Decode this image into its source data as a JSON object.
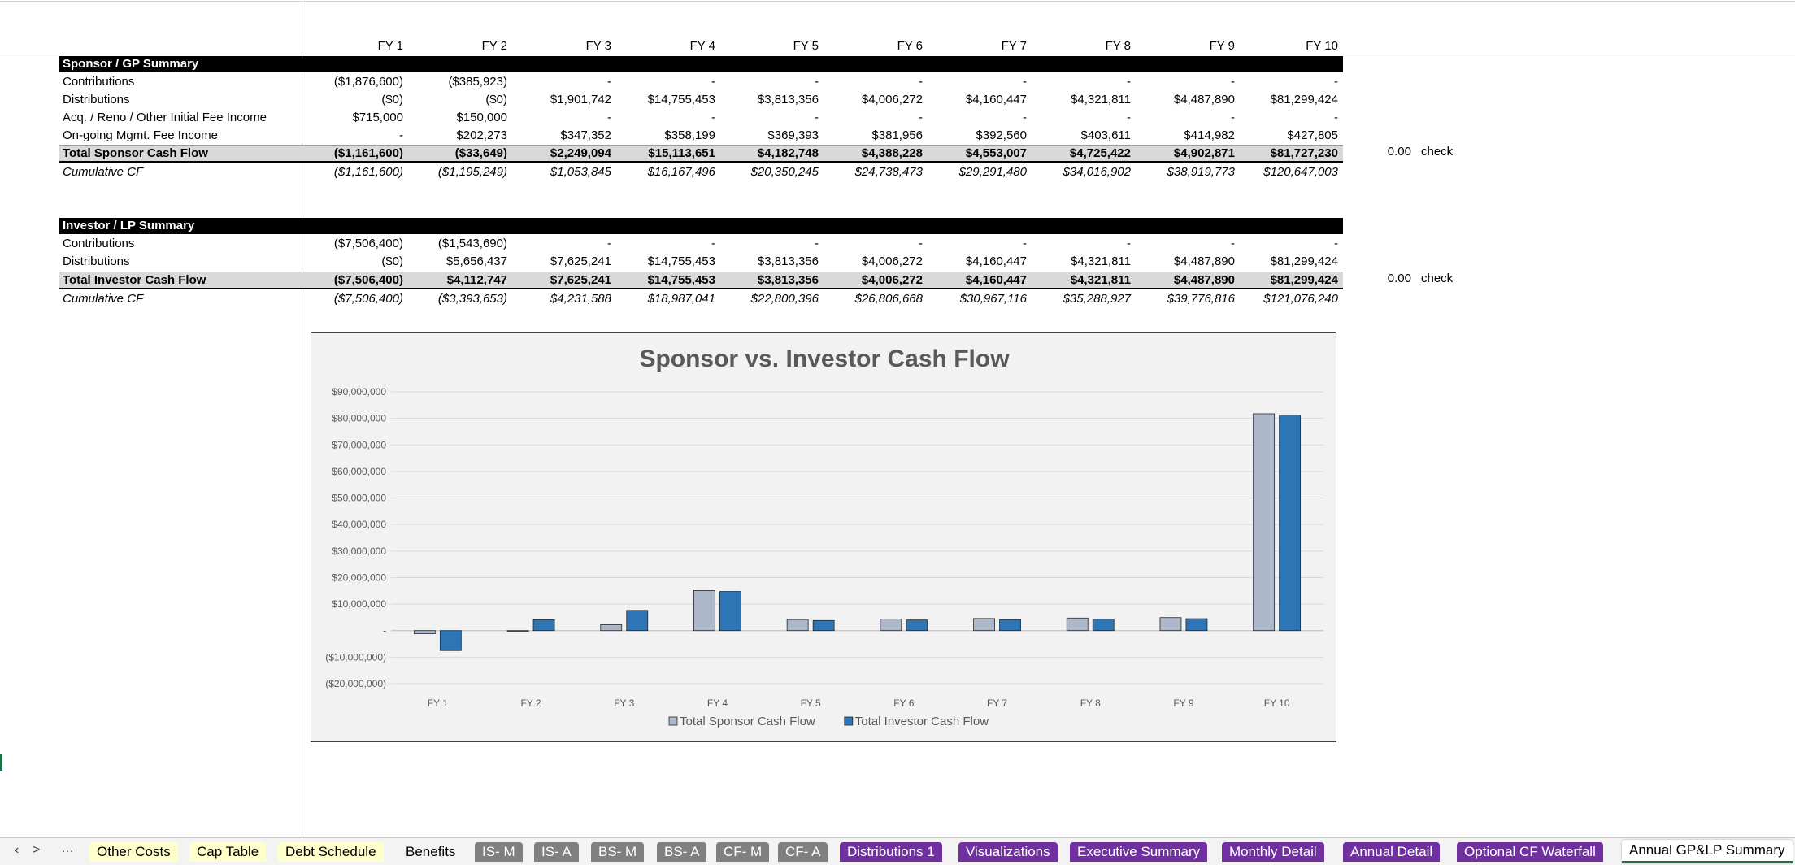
{
  "fy_headers": [
    "FY 1",
    "FY 2",
    "FY 3",
    "FY 4",
    "FY 5",
    "FY 6",
    "FY 7",
    "FY 8",
    "FY 9",
    "FY 10"
  ],
  "sponsor": {
    "title": "Sponsor / GP Summary",
    "rows": [
      {
        "label": "Contributions",
        "values": [
          "($1,876,600)",
          "($385,923)",
          "-",
          "-",
          "-",
          "-",
          "-",
          "-",
          "-",
          "-"
        ]
      },
      {
        "label": "Distributions",
        "values": [
          "($0)",
          "($0)",
          "$1,901,742",
          "$14,755,453",
          "$3,813,356",
          "$4,006,272",
          "$4,160,447",
          "$4,321,811",
          "$4,487,890",
          "$81,299,424"
        ]
      },
      {
        "label": "Acq. / Reno / Other Initial Fee Income",
        "values": [
          "$715,000",
          "$150,000",
          "-",
          "-",
          "-",
          "-",
          "-",
          "-",
          "-",
          "-"
        ]
      },
      {
        "label": "On-going Mgmt. Fee Income",
        "values": [
          "-",
          "$202,273",
          "$347,352",
          "$358,199",
          "$369,393",
          "$381,956",
          "$392,560",
          "$403,611",
          "$414,982",
          "$427,805"
        ]
      }
    ],
    "total": {
      "label": "Total Sponsor Cash Flow",
      "values": [
        "($1,161,600)",
        "($33,649)",
        "$2,249,094",
        "$15,113,651",
        "$4,182,748",
        "$4,388,228",
        "$4,553,007",
        "$4,725,422",
        "$4,902,871",
        "$81,727,230"
      ]
    },
    "cumulative": {
      "label": "Cumulative CF",
      "values": [
        "($1,161,600)",
        "($1,195,249)",
        "$1,053,845",
        "$16,167,496",
        "$20,350,245",
        "$24,738,473",
        "$29,291,480",
        "$34,016,902",
        "$38,919,773",
        "$120,647,003"
      ]
    },
    "check_value": "0.00",
    "check_label": "check"
  },
  "investor": {
    "title": "Investor / LP Summary",
    "rows": [
      {
        "label": "Contributions",
        "values": [
          "($7,506,400)",
          "($1,543,690)",
          "-",
          "-",
          "-",
          "-",
          "-",
          "-",
          "-",
          "-"
        ]
      },
      {
        "label": "Distributions",
        "values": [
          "($0)",
          "$5,656,437",
          "$7,625,241",
          "$14,755,453",
          "$3,813,356",
          "$4,006,272",
          "$4,160,447",
          "$4,321,811",
          "$4,487,890",
          "$81,299,424"
        ]
      }
    ],
    "total": {
      "label": "Total Investor Cash Flow",
      "values": [
        "($7,506,400)",
        "$4,112,747",
        "$7,625,241",
        "$14,755,453",
        "$3,813,356",
        "$4,006,272",
        "$4,160,447",
        "$4,321,811",
        "$4,487,890",
        "$81,299,424"
      ]
    },
    "cumulative": {
      "label": "Cumulative CF",
      "values": [
        "($7,506,400)",
        "($3,393,653)",
        "$4,231,588",
        "$18,987,041",
        "$22,800,396",
        "$26,806,668",
        "$30,967,116",
        "$35,288,927",
        "$39,776,816",
        "$121,076,240"
      ]
    },
    "check_value": "0.00",
    "check_label": "check"
  },
  "chart_data": {
    "type": "bar",
    "title": "Sponsor vs. Investor Cash Flow",
    "categories": [
      "FY 1",
      "FY 2",
      "FY 3",
      "FY 4",
      "FY 5",
      "FY 6",
      "FY 7",
      "FY 8",
      "FY 9",
      "FY 10"
    ],
    "series": [
      {
        "name": "Total Sponsor Cash Flow",
        "color": "#adb9ca",
        "values": [
          -1161600,
          -33649,
          2249094,
          15113651,
          4182748,
          4388228,
          4553007,
          4725422,
          4902871,
          81727230
        ]
      },
      {
        "name": "Total Investor Cash Flow",
        "color": "#2e75b6",
        "values": [
          -7506400,
          4112747,
          7625241,
          14755453,
          3813356,
          4006272,
          4160447,
          4321811,
          4487890,
          81299424
        ]
      }
    ],
    "ylim": [
      -20000000,
      90000000
    ],
    "y_ticks": [
      {
        "value": 90000000,
        "label": "$90,000,000"
      },
      {
        "value": 80000000,
        "label": "$80,000,000"
      },
      {
        "value": 70000000,
        "label": "$70,000,000"
      },
      {
        "value": 60000000,
        "label": "$60,000,000"
      },
      {
        "value": 50000000,
        "label": "$50,000,000"
      },
      {
        "value": 40000000,
        "label": "$40,000,000"
      },
      {
        "value": 30000000,
        "label": "$30,000,000"
      },
      {
        "value": 20000000,
        "label": "$20,000,000"
      },
      {
        "value": 10000000,
        "label": "$10,000,000"
      },
      {
        "value": 0,
        "label": "-"
      },
      {
        "value": -10000000,
        "label": "($10,000,000)"
      },
      {
        "value": -20000000,
        "label": "($20,000,000)"
      }
    ],
    "grid": true,
    "legend": "bottom",
    "xlabel": "",
    "ylabel": ""
  },
  "tabs": {
    "nav_prev": ">",
    "nav_next": ">",
    "nav_more": "…",
    "items": [
      {
        "label": "Other Costs",
        "style": "y"
      },
      {
        "label": "Cap Table",
        "style": "y"
      },
      {
        "label": "Debt Schedule",
        "style": "y"
      },
      {
        "label": "Benefits",
        "style": "w"
      },
      {
        "label": "IS- M",
        "style": "g"
      },
      {
        "label": "IS- A",
        "style": "g"
      },
      {
        "label": "BS- M",
        "style": "g"
      },
      {
        "label": "BS- A",
        "style": "g"
      },
      {
        "label": "CF- M",
        "style": "g"
      },
      {
        "label": "CF- A",
        "style": "g"
      },
      {
        "label": "Distributions 1",
        "style": "p"
      },
      {
        "label": "Visualizations",
        "style": "p"
      },
      {
        "label": "Executive Summary",
        "style": "p"
      },
      {
        "label": "Monthly Detail",
        "style": "p"
      },
      {
        "label": "Annual Detail",
        "style": "p"
      },
      {
        "label": "Optional CF Waterfall",
        "style": "p"
      },
      {
        "label": "Annual GP&LP Summary",
        "style": "a"
      }
    ]
  }
}
